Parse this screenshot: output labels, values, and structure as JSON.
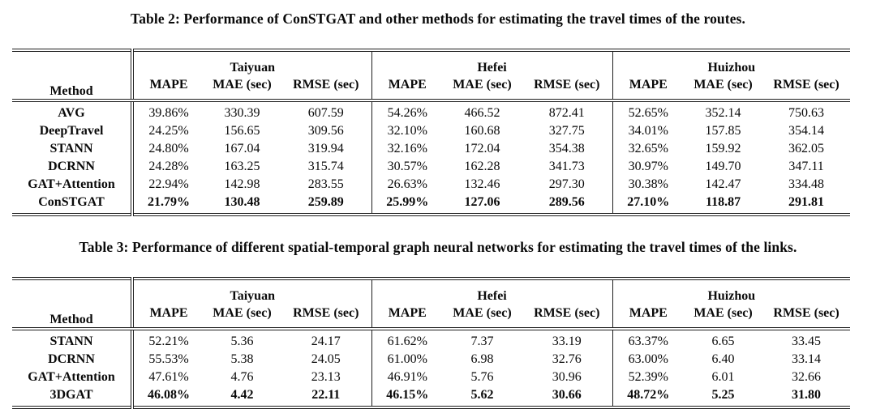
{
  "page": {
    "background": "#ffffff",
    "text_color": "#0a0a0a",
    "rule_color": "#1e1e1e"
  },
  "tables": [
    {
      "caption": "Table 2: Performance of ConSTGAT and other methods for estimating the travel times of the routes.",
      "method_header": "Method",
      "city_groups": [
        "Taiyuan",
        "Hefei",
        "Huizhou"
      ],
      "metric_headers": [
        "MAPE",
        "MAE (sec)",
        "RMSE (sec)"
      ],
      "rows": [
        {
          "method": "AVG",
          "bold": false,
          "values": [
            "39.86%",
            "330.39",
            "607.59",
            "54.26%",
            "466.52",
            "872.41",
            "52.65%",
            "352.14",
            "750.63"
          ]
        },
        {
          "method": "DeepTravel",
          "bold": false,
          "values": [
            "24.25%",
            "156.65",
            "309.56",
            "32.10%",
            "160.68",
            "327.75",
            "34.01%",
            "157.85",
            "354.14"
          ]
        },
        {
          "method": "STANN",
          "bold": false,
          "values": [
            "24.80%",
            "167.04",
            "319.94",
            "32.16%",
            "172.04",
            "354.38",
            "32.65%",
            "159.92",
            "362.05"
          ]
        },
        {
          "method": "DCRNN",
          "bold": false,
          "values": [
            "24.28%",
            "163.25",
            "315.74",
            "30.57%",
            "162.28",
            "341.73",
            "30.97%",
            "149.70",
            "347.11"
          ]
        },
        {
          "method": "GAT+Attention",
          "bold": false,
          "values": [
            "22.94%",
            "142.98",
            "283.55",
            "26.63%",
            "132.46",
            "297.30",
            "30.38%",
            "142.47",
            "334.48"
          ]
        },
        {
          "method": "ConSTGAT",
          "bold": true,
          "values": [
            "21.79%",
            "130.48",
            "259.89",
            "25.99%",
            "127.06",
            "289.56",
            "27.10%",
            "118.87",
            "291.81"
          ]
        }
      ]
    },
    {
      "caption": "Table 3: Performance of different spatial-temporal graph neural networks for estimating the travel times of the links.",
      "method_header": "Method",
      "city_groups": [
        "Taiyuan",
        "Hefei",
        "Huizhou"
      ],
      "metric_headers": [
        "MAPE",
        "MAE (sec)",
        "RMSE (sec)"
      ],
      "rows": [
        {
          "method": "STANN",
          "bold": false,
          "values": [
            "52.21%",
            "5.36",
            "24.17",
            "61.62%",
            "7.37",
            "33.19",
            "63.37%",
            "6.65",
            "33.45"
          ]
        },
        {
          "method": "DCRNN",
          "bold": false,
          "values": [
            "55.53%",
            "5.38",
            "24.05",
            "61.00%",
            "6.98",
            "32.76",
            "63.00%",
            "6.40",
            "33.14"
          ]
        },
        {
          "method": "GAT+Attention",
          "bold": false,
          "values": [
            "47.61%",
            "4.76",
            "23.13",
            "46.91%",
            "5.76",
            "30.96",
            "52.39%",
            "6.01",
            "32.66"
          ]
        },
        {
          "method": "3DGAT",
          "bold": true,
          "values": [
            "46.08%",
            "4.42",
            "22.11",
            "46.15%",
            "5.62",
            "30.66",
            "48.72%",
            "5.25",
            "31.80"
          ]
        }
      ]
    }
  ]
}
